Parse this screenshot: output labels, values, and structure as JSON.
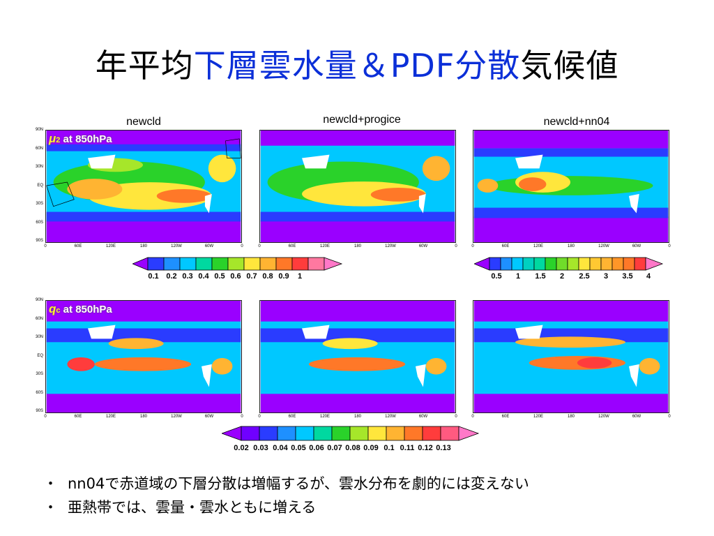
{
  "title": {
    "part1": "年平均",
    "part2": "下層雲水量＆PDF分散",
    "part3": "気候値"
  },
  "columns": [
    "newcld",
    "newcld+progice",
    "newcld+nn04"
  ],
  "row1_label": {
    "symbol": "μ",
    "sub": "2",
    "text": " at 850hPa"
  },
  "row2_label": {
    "symbol": "q",
    "sub": "c",
    "text": " at 850hPa"
  },
  "y_ticks": [
    "90N",
    "60N",
    "30N",
    "EQ",
    "30S",
    "60S",
    "90S"
  ],
  "x_ticks": [
    "0",
    "60E",
    "120E",
    "180",
    "120W",
    "60W",
    "0"
  ],
  "colorbar1": [
    "0.1",
    "0.2",
    "0.3",
    "0.4",
    "0.5",
    "0.6",
    "0.7",
    "0.8",
    "0.9",
    "1"
  ],
  "colorbar2": [
    "0.5",
    "1",
    "1.5",
    "2",
    "2.5",
    "3",
    "3.5",
    "4"
  ],
  "colorbar3": [
    "0.02",
    "0.03",
    "0.04",
    "0.05",
    "0.06",
    "0.07",
    "0.08",
    "0.09",
    "0.1",
    "0.11",
    "0.12",
    "0.13"
  ],
  "colors": {
    "title_highlight": "#0b2fd8",
    "scale": [
      "#9a00ff",
      "#2a3cff",
      "#1e90ff",
      "#00c8ff",
      "#00d8a0",
      "#2ad22a",
      "#a6e62a",
      "#ffe63c",
      "#ffb432",
      "#ff7828",
      "#ff3c3c",
      "#ff78c8"
    ]
  },
  "bullets": [
    "nn04で赤道域の下層分散は増幅するが、雲水分布を劇的には変えない",
    "亜熱帯では、雲量・雲水ともに増える"
  ],
  "bullet_mark": "・"
}
